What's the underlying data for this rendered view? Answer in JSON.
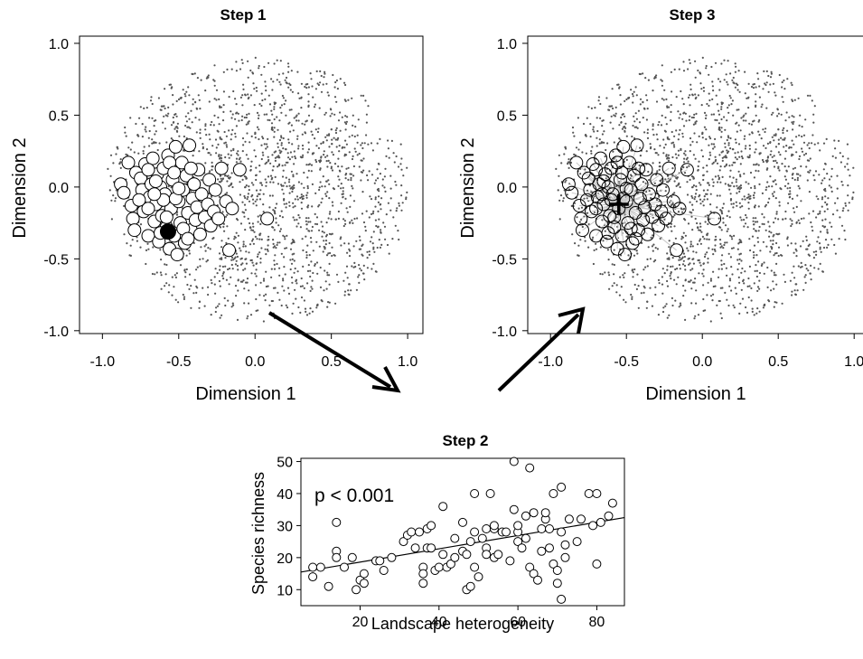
{
  "chart_data": [
    {
      "type": "scatter",
      "title": "Step 1",
      "xlabel": "Dimension 1",
      "ylabel": "Dimension 2",
      "xlim": [
        -1.15,
        1.1
      ],
      "ylim": [
        -1.02,
        1.05
      ],
      "x_ticks": [
        "-1.0",
        "-0.5",
        "0.0",
        "0.5",
        "1.0"
      ],
      "y_ticks": [
        "-1.0",
        "-0.5",
        "0.0",
        "0.5",
        "1.0"
      ],
      "background_cloud": {
        "count": 1800,
        "x_range": [
          -1.0,
          1.0
        ],
        "y_range": [
          -0.95,
          1.0
        ],
        "color": "#555555"
      },
      "highlighted_points": [
        [
          -0.88,
          0.02
        ],
        [
          -0.86,
          -0.04
        ],
        [
          -0.83,
          0.17
        ],
        [
          -0.81,
          -0.13
        ],
        [
          -0.8,
          -0.22
        ],
        [
          -0.79,
          -0.3
        ],
        [
          -0.78,
          0.1
        ],
        [
          -0.75,
          0.06
        ],
        [
          -0.74,
          -0.02
        ],
        [
          -0.73,
          -0.17
        ],
        [
          -0.72,
          0.16
        ],
        [
          -0.7,
          -0.34
        ],
        [
          -0.69,
          -0.07
        ],
        [
          -0.68,
          0.02
        ],
        [
          -0.67,
          0.2
        ],
        [
          -0.66,
          -0.24
        ],
        [
          -0.65,
          -0.12
        ],
        [
          -0.64,
          0.09
        ],
        [
          -0.63,
          -0.38
        ],
        [
          -0.62,
          0.0
        ],
        [
          -0.61,
          -0.2
        ],
        [
          -0.6,
          0.13
        ],
        [
          -0.59,
          -0.05
        ],
        [
          -0.58,
          -0.28
        ],
        [
          -0.57,
          0.22
        ],
        [
          -0.56,
          -0.43
        ],
        [
          -0.55,
          -0.15
        ],
        [
          -0.54,
          0.05
        ],
        [
          -0.53,
          -0.34
        ],
        [
          -0.52,
          0.28
        ],
        [
          -0.51,
          -0.47
        ],
        [
          -0.5,
          -0.1
        ],
        [
          -0.49,
          -0.25
        ],
        [
          -0.48,
          0.17
        ],
        [
          -0.47,
          -0.02
        ],
        [
          -0.46,
          -0.39
        ],
        [
          -0.45,
          0.08
        ],
        [
          -0.44,
          -0.18
        ],
        [
          -0.43,
          0.29
        ],
        [
          -0.42,
          -0.3
        ],
        [
          -0.41,
          -0.08
        ],
        [
          -0.4,
          0.02
        ],
        [
          -0.39,
          -0.23
        ],
        [
          -0.38,
          -0.14
        ],
        [
          -0.37,
          0.12
        ],
        [
          -0.36,
          -0.33
        ],
        [
          -0.35,
          -0.05
        ],
        [
          -0.33,
          -0.21
        ],
        [
          -0.31,
          -0.12
        ],
        [
          -0.3,
          0.05
        ],
        [
          -0.29,
          -0.27
        ],
        [
          -0.27,
          -0.17
        ],
        [
          -0.26,
          -0.02
        ],
        [
          -0.24,
          -0.22
        ],
        [
          -0.22,
          0.13
        ],
        [
          -0.19,
          -0.1
        ],
        [
          -0.17,
          -0.44
        ],
        [
          -0.15,
          -0.15
        ],
        [
          -0.1,
          0.12
        ],
        [
          0.08,
          -0.22
        ],
        [
          -0.6,
          -0.09
        ],
        [
          -0.65,
          0.04
        ],
        [
          -0.7,
          -0.15
        ],
        [
          -0.58,
          -0.21
        ],
        [
          -0.52,
          -0.08
        ],
        [
          -0.47,
          -0.29
        ],
        [
          -0.56,
          0.17
        ],
        [
          -0.42,
          0.13
        ],
        [
          -0.62,
          -0.32
        ],
        [
          -0.66,
          -0.05
        ],
        [
          -0.53,
          0.1
        ],
        [
          -0.44,
          -0.36
        ],
        [
          -0.7,
          0.12
        ],
        [
          -0.76,
          -0.09
        ],
        [
          -0.5,
          -0.01
        ]
      ],
      "focal_point": {
        "x": -0.57,
        "y": -0.31
      }
    },
    {
      "type": "scatter",
      "title": "Step 3",
      "xlabel": "Dimension 1",
      "ylabel": "Dimension 2",
      "xlim": [
        -1.15,
        1.1
      ],
      "ylim": [
        -1.02,
        1.05
      ],
      "x_ticks": [
        "-1.0",
        "-0.5",
        "0.0",
        "0.5",
        "1.0"
      ],
      "y_ticks": [
        "-1.0",
        "-0.5",
        "0.0",
        "0.5",
        "1.0"
      ],
      "background_cloud": {
        "count": 1800,
        "x_range": [
          -1.0,
          1.0
        ],
        "y_range": [
          -0.95,
          1.0
        ],
        "color": "#555555"
      },
      "centroid": {
        "x": -0.55,
        "y": -0.12
      },
      "centroid_marker": "plus",
      "link_color": "#c8c8c8"
    },
    {
      "type": "scatter",
      "title": "Step 2",
      "xlabel": "Landscape heterogeneity",
      "ylabel": "Species richness",
      "annotation": "p < 0.001",
      "xlim": [
        5,
        87
      ],
      "ylim": [
        5,
        51
      ],
      "x_ticks": [
        20,
        40,
        60,
        80
      ],
      "y_ticks": [
        10,
        20,
        30,
        40,
        50
      ],
      "regression_line": {
        "x": [
          5,
          87
        ],
        "y": [
          15.5,
          32.5
        ]
      },
      "points": [
        [
          8,
          17
        ],
        [
          8,
          14
        ],
        [
          10,
          17
        ],
        [
          12,
          11
        ],
        [
          14,
          31
        ],
        [
          14,
          22
        ],
        [
          14,
          20
        ],
        [
          16,
          17
        ],
        [
          18,
          20
        ],
        [
          19,
          10
        ],
        [
          20,
          13
        ],
        [
          21,
          15
        ],
        [
          21,
          12
        ],
        [
          24,
          19
        ],
        [
          25,
          19
        ],
        [
          26,
          16
        ],
        [
          28,
          20
        ],
        [
          31,
          25
        ],
        [
          32,
          27
        ],
        [
          33,
          28
        ],
        [
          34,
          23
        ],
        [
          35,
          28
        ],
        [
          36,
          17
        ],
        [
          36,
          15
        ],
        [
          36,
          12
        ],
        [
          37,
          23
        ],
        [
          37,
          29
        ],
        [
          38,
          30
        ],
        [
          38,
          23
        ],
        [
          39,
          16
        ],
        [
          40,
          17
        ],
        [
          41,
          36
        ],
        [
          41,
          21
        ],
        [
          42,
          17
        ],
        [
          43,
          18
        ],
        [
          44,
          26
        ],
        [
          44,
          20
        ],
        [
          46,
          31
        ],
        [
          46,
          22
        ],
        [
          47,
          21
        ],
        [
          47,
          10
        ],
        [
          48,
          11
        ],
        [
          48,
          25
        ],
        [
          49,
          40
        ],
        [
          49,
          28
        ],
        [
          49,
          17
        ],
        [
          50,
          14
        ],
        [
          51,
          26
        ],
        [
          52,
          29
        ],
        [
          52,
          23
        ],
        [
          52,
          21
        ],
        [
          53,
          40
        ],
        [
          54,
          20
        ],
        [
          54,
          29
        ],
        [
          54,
          30
        ],
        [
          55,
          21
        ],
        [
          56,
          28
        ],
        [
          57,
          28
        ],
        [
          58,
          19
        ],
        [
          59,
          50
        ],
        [
          59,
          35
        ],
        [
          60,
          28
        ],
        [
          60,
          30
        ],
        [
          60,
          25
        ],
        [
          61,
          23
        ],
        [
          62,
          26
        ],
        [
          62,
          33
        ],
        [
          63,
          48
        ],
        [
          63,
          17
        ],
        [
          64,
          34
        ],
        [
          64,
          15
        ],
        [
          65,
          13
        ],
        [
          66,
          29
        ],
        [
          66,
          22
        ],
        [
          67,
          32
        ],
        [
          67,
          34
        ],
        [
          68,
          29
        ],
        [
          68,
          23
        ],
        [
          69,
          40
        ],
        [
          69,
          18
        ],
        [
          70,
          16
        ],
        [
          70,
          12
        ],
        [
          71,
          42
        ],
        [
          71,
          28
        ],
        [
          71,
          7
        ],
        [
          72,
          24
        ],
        [
          72,
          20
        ],
        [
          73,
          32
        ],
        [
          75,
          25
        ],
        [
          76,
          32
        ],
        [
          78,
          40
        ],
        [
          79,
          30
        ],
        [
          80,
          40
        ],
        [
          80,
          18
        ],
        [
          81,
          31
        ],
        [
          83,
          33
        ],
        [
          84,
          37
        ]
      ]
    }
  ]
}
